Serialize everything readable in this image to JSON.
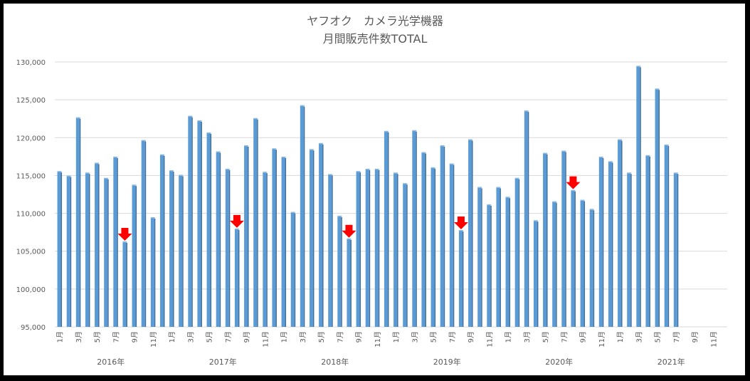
{
  "chart_data": {
    "type": "bar",
    "title": [
      "ヤフオク　カメラ光学機器",
      "月間販売件数TOTAL"
    ],
    "xlabel": "",
    "ylabel": "",
    "ylim": [
      95000,
      130000
    ],
    "ytick_step": 5000,
    "yticks": [
      "95,000",
      "100,000",
      "105,000",
      "110,000",
      "115,000",
      "120,000",
      "125,000",
      "130,000"
    ],
    "grid": true,
    "years": [
      "2016年",
      "2017年",
      "2018年",
      "2019年",
      "2020年",
      "2021年"
    ],
    "month_labels": [
      "1月",
      "",
      "3月",
      "",
      "5月",
      "",
      "7月",
      "",
      "9月",
      "",
      "11月",
      ""
    ],
    "values": [
      115500,
      114900,
      122600,
      115300,
      116600,
      114600,
      117400,
      106200,
      113700,
      119600,
      109400,
      117700,
      115600,
      115000,
      122800,
      122200,
      120600,
      118100,
      115800,
      107900,
      118900,
      122500,
      115400,
      118500,
      117400,
      110100,
      124200,
      118400,
      119200,
      115100,
      109600,
      106600,
      115500,
      115800,
      115800,
      120800,
      115300,
      113900,
      120900,
      118000,
      116000,
      118900,
      116500,
      107700,
      119700,
      113400,
      111100,
      113400,
      112100,
      114600,
      123500,
      109000,
      117900,
      111500,
      118200,
      113000,
      111700,
      110500,
      117400,
      116800,
      119700,
      115300,
      129400,
      117600,
      126400,
      119000,
      115300,
      null,
      null,
      null,
      null,
      null
    ],
    "highlighted_months": [
      "2016-08",
      "2017-08",
      "2018-08",
      "2019-08",
      "2020-08"
    ],
    "colors": {
      "bar": "#5b9bd5",
      "bar_side": "#3e6f9e",
      "arrow": "#ff0000",
      "grid": "#d9d9d9"
    }
  }
}
